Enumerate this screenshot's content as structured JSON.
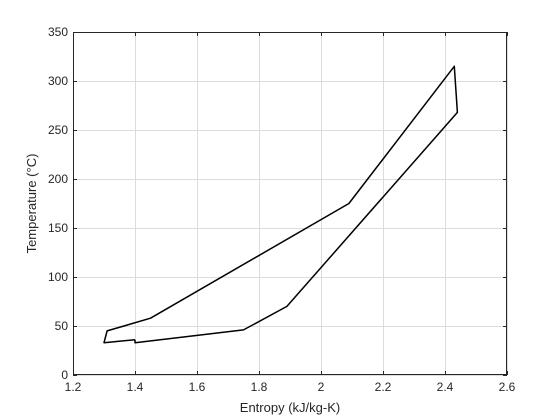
{
  "chart_data": {
    "type": "line",
    "title": "",
    "xlabel": "Entropy (kJ/kg-K)",
    "ylabel": "Temperature (°C)",
    "xlim": [
      1.2,
      2.6
    ],
    "ylim": [
      0,
      350
    ],
    "xticks": [
      1.2,
      1.4,
      1.6,
      1.8,
      2,
      2.2,
      2.4,
      2.6
    ],
    "xtick_labels": [
      "1.2",
      "1.4",
      "1.6",
      "1.8",
      "2",
      "2.2",
      "2.4",
      "2.6"
    ],
    "yticks": [
      0,
      50,
      100,
      150,
      200,
      250,
      300,
      350
    ],
    "ytick_labels": [
      "0",
      "50",
      "100",
      "150",
      "200",
      "250",
      "300",
      "350"
    ],
    "grid": true,
    "legend": "none",
    "line_color": "#000000",
    "grid_color": "#dcdcdc",
    "series": [
      {
        "x": [
          1.4,
          1.4,
          1.75,
          1.89,
          2.44,
          2.43,
          2.09,
          1.45,
          1.31,
          1.3,
          1.4
        ],
        "y": [
          36,
          33,
          46,
          70,
          268,
          315,
          175,
          58,
          45,
          33,
          36
        ]
      }
    ]
  }
}
